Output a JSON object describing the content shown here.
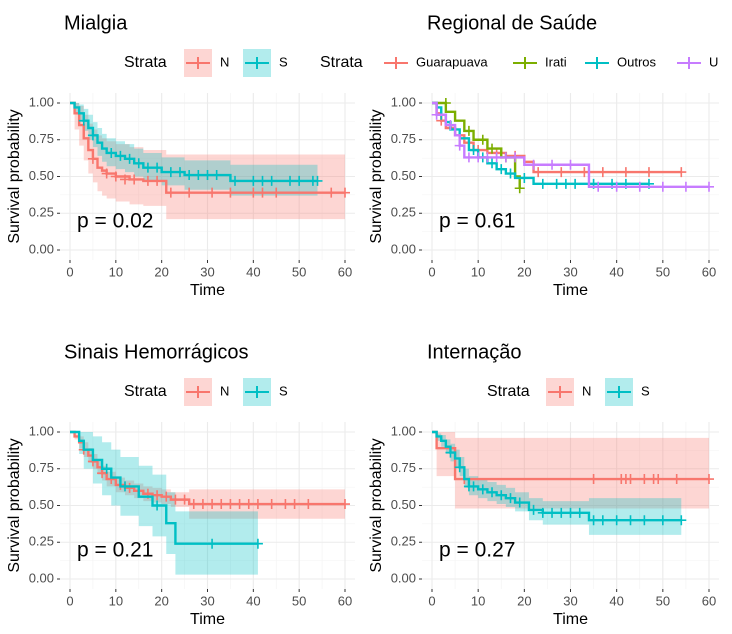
{
  "figure": {
    "panels": [
      {
        "id": "mialgia",
        "title": "Mialgia"
      },
      {
        "id": "regional",
        "title": "Regional de Saúde"
      },
      {
        "id": "sinais",
        "title": "Sinais Hemorrágicos"
      },
      {
        "id": "internacao",
        "title": "Internação"
      }
    ]
  },
  "chart_data": [
    {
      "type": "line",
      "title": "Mialgia",
      "xlabel": "Time",
      "ylabel": "Survival probability",
      "xlim": [
        0,
        60
      ],
      "ylim": [
        0,
        1
      ],
      "xticks": [
        0,
        10,
        20,
        30,
        40,
        50,
        60
      ],
      "yticks": [
        0,
        0.25,
        0.5,
        0.75,
        1
      ],
      "ytick_labels": [
        "0.00",
        "0.25",
        "0.50",
        "0.75",
        "1.00"
      ],
      "legend_title": "Strata",
      "legend_position": "top",
      "grid": true,
      "pvalue": "p = 0.02",
      "series": [
        {
          "name": "N",
          "color": "#F8766D",
          "x": [
            0,
            1,
            2,
            3,
            4,
            5,
            6,
            7,
            8,
            10,
            13,
            16,
            21,
            60
          ],
          "y": [
            1,
            0.93,
            0.85,
            0.76,
            0.68,
            0.62,
            0.56,
            0.54,
            0.52,
            0.5,
            0.48,
            0.47,
            0.39,
            0.39
          ],
          "lower": [
            1,
            0.82,
            0.71,
            0.61,
            0.52,
            0.46,
            0.4,
            0.37,
            0.35,
            0.33,
            0.31,
            0.3,
            0.21,
            0.21
          ],
          "upper": [
            1,
            1,
            0.98,
            0.92,
            0.86,
            0.82,
            0.78,
            0.76,
            0.74,
            0.72,
            0.7,
            0.68,
            0.65,
            0.65
          ],
          "censor_x": [
            5,
            8,
            10,
            12,
            14,
            17,
            19,
            22,
            26,
            31,
            35,
            40,
            42,
            45,
            57,
            60
          ],
          "censor_y": [
            0.62,
            0.52,
            0.5,
            0.48,
            0.48,
            0.47,
            0.47,
            0.39,
            0.39,
            0.39,
            0.39,
            0.39,
            0.39,
            0.39,
            0.39,
            0.39
          ]
        },
        {
          "name": "S",
          "color": "#00BFC4",
          "x": [
            0,
            1,
            2,
            3,
            4,
            5,
            6,
            7,
            8,
            10,
            12,
            14,
            16,
            20,
            25,
            35,
            54
          ],
          "y": [
            1,
            0.97,
            0.93,
            0.88,
            0.83,
            0.78,
            0.73,
            0.69,
            0.66,
            0.64,
            0.62,
            0.59,
            0.56,
            0.53,
            0.51,
            0.47,
            0.47
          ],
          "lower": [
            1,
            0.93,
            0.87,
            0.81,
            0.75,
            0.7,
            0.64,
            0.6,
            0.57,
            0.55,
            0.53,
            0.5,
            0.47,
            0.44,
            0.41,
            0.37,
            0.37
          ],
          "upper": [
            1,
            1,
            0.99,
            0.96,
            0.92,
            0.87,
            0.83,
            0.79,
            0.76,
            0.74,
            0.72,
            0.69,
            0.66,
            0.63,
            0.61,
            0.58,
            0.58
          ],
          "censor_x": [
            3,
            5,
            9,
            11,
            13,
            15,
            17,
            19,
            22,
            24,
            26,
            28,
            30,
            32,
            36,
            40,
            42,
            44,
            48,
            50,
            53,
            54
          ],
          "censor_y": [
            0.88,
            0.78,
            0.66,
            0.64,
            0.62,
            0.59,
            0.56,
            0.56,
            0.53,
            0.53,
            0.51,
            0.51,
            0.51,
            0.51,
            0.47,
            0.47,
            0.47,
            0.47,
            0.47,
            0.47,
            0.47,
            0.47
          ]
        }
      ]
    },
    {
      "type": "line",
      "title": "Regional de Saúde",
      "xlabel": "Time",
      "ylabel": "Survival probability",
      "xlim": [
        0,
        60
      ],
      "ylim": [
        0,
        1
      ],
      "xticks": [
        0,
        10,
        20,
        30,
        40,
        50,
        60
      ],
      "yticks": [
        0,
        0.25,
        0.5,
        0.75,
        1
      ],
      "ytick_labels": [
        "0.00",
        "0.25",
        "0.50",
        "0.75",
        "1.00"
      ],
      "legend_title": "Strata",
      "legend_position": "top",
      "grid": true,
      "pvalue": "p = 0.61",
      "series": [
        {
          "name": "Guarapuava",
          "color": "#F8766D",
          "x": [
            0,
            1,
            2,
            3,
            5,
            7,
            9,
            12,
            16,
            20,
            22,
            54
          ],
          "y": [
            1,
            0.93,
            0.88,
            0.83,
            0.78,
            0.73,
            0.68,
            0.66,
            0.64,
            0.6,
            0.53,
            0.53
          ],
          "censor_x": [
            2,
            6,
            10,
            14,
            18,
            23,
            28,
            33,
            37,
            42,
            47,
            54
          ],
          "censor_y": [
            0.88,
            0.78,
            0.68,
            0.66,
            0.64,
            0.53,
            0.53,
            0.53,
            0.53,
            0.53,
            0.53,
            0.53
          ]
        },
        {
          "name": "Irati",
          "color": "#7CAE00",
          "x": [
            0,
            3,
            5,
            7,
            9,
            12,
            15,
            18,
            19
          ],
          "y": [
            1,
            0.94,
            0.88,
            0.81,
            0.75,
            0.69,
            0.63,
            0.5,
            0.42
          ],
          "censor_x": [
            3,
            8,
            11,
            13,
            16,
            19
          ],
          "censor_y": [
            1,
            0.81,
            0.75,
            0.69,
            0.63,
            0.42
          ]
        },
        {
          "name": "Outros",
          "color": "#00BFC4",
          "x": [
            0,
            1,
            2,
            3,
            4,
            6,
            8,
            10,
            12,
            14,
            16,
            18,
            22,
            47
          ],
          "y": [
            1,
            0.97,
            0.92,
            0.87,
            0.82,
            0.76,
            0.68,
            0.63,
            0.59,
            0.55,
            0.52,
            0.49,
            0.45,
            0.45
          ],
          "censor_x": [
            2,
            5,
            9,
            11,
            13,
            15,
            17,
            20,
            24,
            27,
            29,
            31,
            35,
            39,
            42,
            47
          ],
          "censor_y": [
            0.92,
            0.82,
            0.68,
            0.63,
            0.59,
            0.55,
            0.52,
            0.49,
            0.45,
            0.45,
            0.45,
            0.45,
            0.45,
            0.45,
            0.45,
            0.45
          ]
        },
        {
          "name": "U",
          "color": "#C77CFF",
          "x": [
            0,
            1,
            3,
            5,
            6,
            7,
            20,
            34,
            60
          ],
          "y": [
            1,
            0.92,
            0.85,
            0.78,
            0.71,
            0.63,
            0.58,
            0.43,
            0.43
          ],
          "censor_x": [
            1,
            4,
            6,
            8,
            10,
            12,
            14,
            16,
            18,
            22,
            26,
            30,
            36,
            40,
            45,
            50,
            55,
            60
          ],
          "censor_y": [
            0.92,
            0.85,
            0.71,
            0.63,
            0.63,
            0.63,
            0.63,
            0.63,
            0.63,
            0.58,
            0.58,
            0.58,
            0.43,
            0.43,
            0.43,
            0.43,
            0.43,
            0.43
          ]
        }
      ]
    },
    {
      "type": "line",
      "title": "Sinais Hemorrágicos",
      "xlabel": "Time",
      "ylabel": "Survival probability",
      "xlim": [
        0,
        60
      ],
      "ylim": [
        0,
        1
      ],
      "xticks": [
        0,
        10,
        20,
        30,
        40,
        50,
        60
      ],
      "yticks": [
        0,
        0.25,
        0.5,
        0.75,
        1
      ],
      "ytick_labels": [
        "0.00",
        "0.25",
        "0.50",
        "0.75",
        "1.00"
      ],
      "legend_title": "Strata",
      "legend_position": "top",
      "grid": true,
      "pvalue": "p = 0.21",
      "series": [
        {
          "name": "N",
          "color": "#F8766D",
          "x": [
            0,
            1,
            2,
            3,
            4,
            5,
            6,
            7,
            8,
            10,
            12,
            14,
            16,
            18,
            20,
            22,
            26,
            60
          ],
          "y": [
            1,
            0.97,
            0.93,
            0.88,
            0.84,
            0.8,
            0.76,
            0.72,
            0.68,
            0.64,
            0.62,
            0.6,
            0.58,
            0.57,
            0.56,
            0.54,
            0.51,
            0.51
          ],
          "lower": [
            1,
            0.95,
            0.89,
            0.83,
            0.79,
            0.75,
            0.71,
            0.67,
            0.63,
            0.59,
            0.57,
            0.55,
            0.53,
            0.52,
            0.51,
            0.49,
            0.41,
            0.41
          ],
          "upper": [
            1,
            0.99,
            0.97,
            0.93,
            0.89,
            0.85,
            0.81,
            0.77,
            0.73,
            0.69,
            0.67,
            0.65,
            0.63,
            0.62,
            0.61,
            0.59,
            0.61,
            0.61
          ],
          "censor_x": [
            3,
            5,
            7,
            9,
            11,
            13,
            15,
            17,
            19,
            21,
            23,
            25,
            27,
            29,
            31,
            33,
            35,
            37,
            39,
            41,
            44,
            47,
            49,
            52,
            60
          ],
          "censor_y": [
            0.88,
            0.8,
            0.72,
            0.68,
            0.64,
            0.62,
            0.6,
            0.58,
            0.57,
            0.56,
            0.54,
            0.54,
            0.51,
            0.51,
            0.51,
            0.51,
            0.51,
            0.51,
            0.51,
            0.51,
            0.51,
            0.51,
            0.51,
            0.51,
            0.51
          ]
        },
        {
          "name": "S",
          "color": "#00BFC4",
          "x": [
            0,
            2,
            3,
            5,
            7,
            9,
            11,
            15,
            18,
            21,
            23,
            41
          ],
          "y": [
            1,
            0.94,
            0.88,
            0.81,
            0.75,
            0.69,
            0.63,
            0.56,
            0.5,
            0.38,
            0.24,
            0.24
          ],
          "lower": [
            1,
            0.85,
            0.75,
            0.65,
            0.57,
            0.5,
            0.43,
            0.36,
            0.29,
            0.17,
            0.03,
            0.03
          ],
          "upper": [
            1,
            1,
            1,
            0.97,
            0.93,
            0.88,
            0.83,
            0.77,
            0.71,
            0.59,
            0.46,
            0.46
          ],
          "censor_x": [
            8,
            12,
            19,
            31,
            41
          ],
          "censor_y": [
            0.75,
            0.63,
            0.5,
            0.24,
            0.24
          ]
        }
      ]
    },
    {
      "type": "line",
      "title": "Internação",
      "xlabel": "Time",
      "ylabel": "Survival probability",
      "xlim": [
        0,
        60
      ],
      "ylim": [
        0,
        1
      ],
      "xticks": [
        0,
        10,
        20,
        30,
        40,
        50,
        60
      ],
      "yticks": [
        0,
        0.25,
        0.5,
        0.75,
        1
      ],
      "ytick_labels": [
        "0.00",
        "0.25",
        "0.50",
        "0.75",
        "1.00"
      ],
      "legend_title": "Strata",
      "legend_position": "top",
      "grid": true,
      "pvalue": "p = 0.27",
      "series": [
        {
          "name": "N",
          "color": "#F8766D",
          "x": [
            0,
            1,
            5,
            60
          ],
          "y": [
            1,
            0.89,
            0.68,
            0.68
          ],
          "lower": [
            1,
            0.7,
            0.48,
            0.48
          ],
          "upper": [
            1,
            1,
            0.96,
            0.96
          ],
          "censor_x": [
            7,
            35,
            41,
            42,
            43,
            46,
            48,
            49,
            53,
            60
          ],
          "censor_y": [
            0.68,
            0.68,
            0.68,
            0.68,
            0.68,
            0.68,
            0.68,
            0.68,
            0.68,
            0.68
          ]
        },
        {
          "name": "S",
          "color": "#00BFC4",
          "x": [
            0,
            1,
            2,
            3,
            4,
            5,
            6,
            7,
            8,
            10,
            12,
            14,
            16,
            18,
            21,
            24,
            34,
            54
          ],
          "y": [
            1,
            0.97,
            0.94,
            0.9,
            0.86,
            0.82,
            0.76,
            0.68,
            0.63,
            0.61,
            0.59,
            0.57,
            0.55,
            0.52,
            0.47,
            0.45,
            0.4,
            0.4
          ],
          "lower": [
            1,
            0.94,
            0.9,
            0.85,
            0.8,
            0.76,
            0.7,
            0.62,
            0.57,
            0.55,
            0.53,
            0.51,
            0.49,
            0.46,
            0.4,
            0.37,
            0.3,
            0.3
          ],
          "upper": [
            1,
            0.99,
            0.98,
            0.95,
            0.92,
            0.88,
            0.83,
            0.75,
            0.7,
            0.68,
            0.66,
            0.64,
            0.62,
            0.59,
            0.55,
            0.53,
            0.55,
            0.55
          ],
          "censor_x": [
            4,
            6,
            8,
            9,
            11,
            13,
            15,
            17,
            19,
            22,
            24,
            26,
            28,
            30,
            32,
            35,
            37,
            40,
            43,
            46,
            50,
            54
          ],
          "censor_y": [
            0.86,
            0.76,
            0.63,
            0.63,
            0.61,
            0.59,
            0.57,
            0.55,
            0.52,
            0.47,
            0.45,
            0.45,
            0.45,
            0.45,
            0.45,
            0.4,
            0.4,
            0.4,
            0.4,
            0.4,
            0.4,
            0.4
          ]
        }
      ]
    }
  ]
}
